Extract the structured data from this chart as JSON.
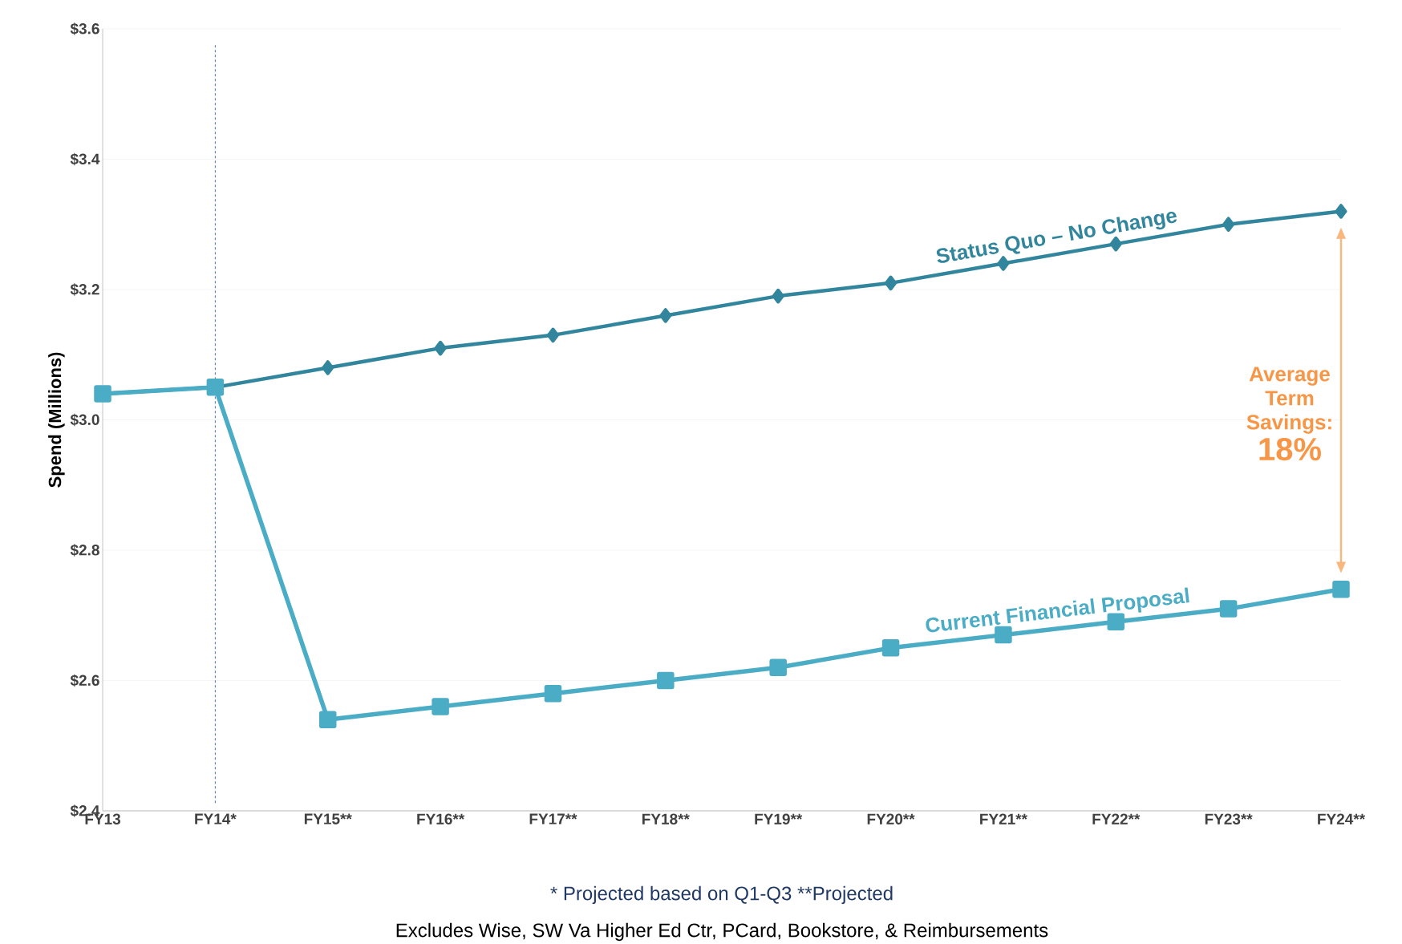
{
  "chart_data": {
    "type": "line",
    "ylabel": "Spend (Millions)",
    "categories": [
      "FY13",
      "FY14*",
      "FY15**",
      "FY16**",
      "FY17**",
      "FY18**",
      "FY19**",
      "FY20**",
      "FY21**",
      "FY22**",
      "FY23**",
      "FY24**"
    ],
    "series": [
      {
        "name": "Status Quo – No Change",
        "color": "#31859c",
        "marker": "diamond",
        "values": [
          3.04,
          3.05,
          3.08,
          3.11,
          3.13,
          3.16,
          3.19,
          3.21,
          3.24,
          3.27,
          3.3,
          3.32
        ]
      },
      {
        "name": "Current Financial Proposal",
        "color": "#4bacc6",
        "marker": "square",
        "values": [
          3.04,
          3.05,
          2.54,
          2.56,
          2.58,
          2.6,
          2.62,
          2.65,
          2.67,
          2.69,
          2.71,
          2.74
        ]
      }
    ],
    "ylim": [
      2.4,
      3.6
    ],
    "yticks": [
      {
        "value": 2.4,
        "label": "$2.4"
      },
      {
        "value": 2.6,
        "label": "$2.6"
      },
      {
        "value": 2.8,
        "label": "$2.8"
      },
      {
        "value": 3.0,
        "label": "$3.0"
      },
      {
        "value": 3.2,
        "label": "$3.2"
      },
      {
        "value": 3.4,
        "label": "$3.4"
      },
      {
        "value": 3.6,
        "label": "$3.6"
      }
    ],
    "grid": "y",
    "legend": false,
    "line_style": "solid",
    "ref_lines": [
      {
        "axis": "x",
        "value": "FY14*",
        "color": "#4472c4",
        "line_style": "dashed"
      }
    ],
    "annotations": [
      "Average Term Savings:",
      "18%",
      "* Projected based on Q1-Q3    **Projected",
      "Excludes Wise, SW Va Higher Ed Ctr, PCard, Bookstore, & Reimbursements"
    ]
  }
}
